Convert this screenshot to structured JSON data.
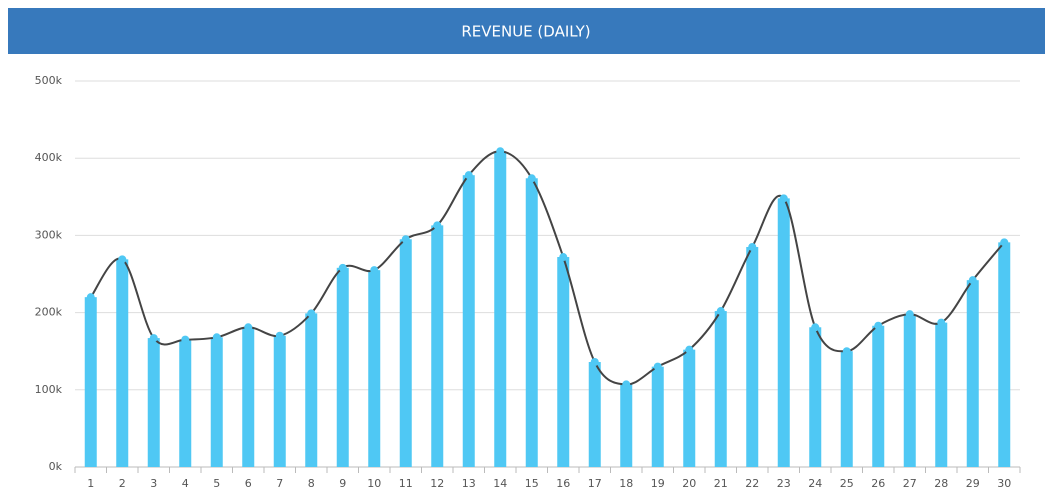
{
  "chart_data": {
    "type": "bar",
    "title": "REVENUE (DAILY)",
    "categories": [
      "1",
      "2",
      "3",
      "4",
      "5",
      "6",
      "7",
      "8",
      "9",
      "10",
      "11",
      "12",
      "13",
      "14",
      "15",
      "16",
      "17",
      "18",
      "19",
      "20",
      "21",
      "22",
      "23",
      "24",
      "25",
      "26",
      "27",
      "28",
      "29",
      "30"
    ],
    "values": [
      220000,
      269000,
      167000,
      165000,
      168000,
      181000,
      170000,
      199000,
      258000,
      255000,
      295000,
      313000,
      378000,
      409000,
      374000,
      272000,
      136000,
      107000,
      130000,
      152000,
      202000,
      285000,
      348000,
      181000,
      150000,
      183000,
      198000,
      187000,
      242000,
      291000
    ],
    "color": "#4fc8f4",
    "line_color": "#444444",
    "ylim": [
      0,
      500000
    ],
    "yticks": [
      {
        "value": 0,
        "label": "0k"
      },
      {
        "value": 100000,
        "label": "100k"
      },
      {
        "value": 200000,
        "label": "200k"
      },
      {
        "value": 300000,
        "label": "300k"
      },
      {
        "value": 400000,
        "label": "400k"
      },
      {
        "value": 500000,
        "label": "500k"
      }
    ],
    "grid": true
  }
}
